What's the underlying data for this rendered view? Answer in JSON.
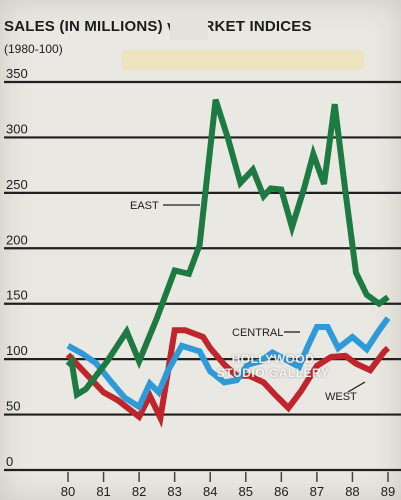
{
  "chart_data": {
    "type": "line",
    "title": "SALES (IN MILLIONS) vs. ARKET INDICES",
    "subtitle": "(1980-100)",
    "xlabel": "",
    "ylabel": "",
    "ylim": [
      0,
      350
    ],
    "y_ticks": [
      "0",
      "50",
      "100",
      "150",
      "200",
      "250",
      "300",
      "350"
    ],
    "x_ticks": [
      "80",
      "81",
      "82",
      "83",
      "84",
      "85",
      "86",
      "87",
      "88",
      "89"
    ],
    "grid": true,
    "series": [
      {
        "name": "EAST",
        "color": "#1d7a43",
        "x": [
          80.0,
          80.1,
          80.25,
          80.5,
          81.1,
          81.65,
          82.0,
          82.5,
          83.0,
          83.4,
          83.7,
          84.15,
          84.5,
          84.85,
          85.2,
          85.5,
          85.7,
          86.0,
          86.3,
          86.65,
          86.9,
          87.2,
          87.5,
          87.8,
          88.1,
          88.4,
          88.75,
          89.0
        ],
        "values": [
          94,
          98,
          68,
          73,
          98,
          125,
          98,
          137,
          180,
          177,
          203,
          334,
          299,
          259,
          271,
          247,
          254,
          253,
          219,
          255,
          285,
          258,
          330,
          252,
          178,
          158,
          150,
          156
        ]
      },
      {
        "name": "CENTRAL",
        "color": "#2f9ad8",
        "x": [
          80.0,
          80.4,
          80.8,
          81.2,
          81.6,
          82.0,
          82.3,
          82.55,
          82.8,
          83.2,
          83.7,
          84.0,
          84.4,
          84.75,
          85.05,
          85.4,
          85.75,
          86.1,
          86.5,
          86.75,
          87.0,
          87.3,
          87.6,
          88.0,
          88.4,
          88.75,
          89.0
        ],
        "values": [
          112,
          105,
          96,
          80,
          65,
          57,
          78,
          70,
          89,
          112,
          107,
          89,
          79,
          81,
          95,
          98,
          106,
          100,
          93,
          112,
          129,
          129,
          110,
          120,
          109,
          126,
          137
        ]
      },
      {
        "name": "WEST",
        "color": "#c0242c",
        "x": [
          80.0,
          80.5,
          81.0,
          81.4,
          82.0,
          82.3,
          82.6,
          83.0,
          83.3,
          83.8,
          84.0,
          84.4,
          84.75,
          85.1,
          85.5,
          85.85,
          86.2,
          86.55,
          87.0,
          87.4,
          87.8,
          88.1,
          88.5,
          88.9,
          89.0
        ],
        "values": [
          104,
          87,
          70,
          63,
          48,
          67,
          47,
          126,
          126,
          120,
          110,
          95,
          85,
          85,
          79,
          67,
          56,
          71,
          94,
          102,
          103,
          96,
          90,
          107,
          110
        ]
      }
    ],
    "annotations": [
      "EAST",
      "CENTRAL",
      "WEST"
    ]
  },
  "watermark": [
    "HOLLYWOOD",
    "STUDIO GALLERY"
  ]
}
